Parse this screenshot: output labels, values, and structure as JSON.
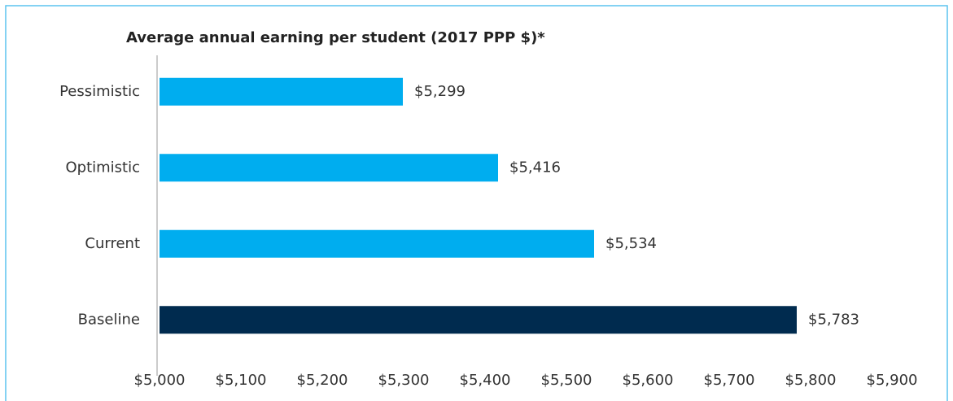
{
  "chart_data": {
    "type": "bar",
    "orientation": "horizontal",
    "title": "Average annual earning per student  (2017 PPP $)*",
    "categories": [
      "Pessimistic",
      "Optimistic",
      "Current",
      "Baseline"
    ],
    "values": [
      5299,
      5416,
      5534,
      5783
    ],
    "value_labels": [
      "$5,299",
      "$5,416",
      "$5,534",
      "$5,783"
    ],
    "colors": [
      "#00adef",
      "#00adef",
      "#00adef",
      "#002b4f"
    ],
    "xlim": [
      5000,
      5900
    ],
    "xticks": [
      {
        "value": 5000,
        "label": "$5,000"
      },
      {
        "value": 5100,
        "label": "$5,100"
      },
      {
        "value": 5200,
        "label": "$5,200"
      },
      {
        "value": 5300,
        "label": "$5,300"
      },
      {
        "value": 5400,
        "label": "$5,400"
      },
      {
        "value": 5500,
        "label": "$5,500"
      },
      {
        "value": 5600,
        "label": "$5,600"
      },
      {
        "value": 5700,
        "label": "$5,700"
      },
      {
        "value": 5800,
        "label": "$5,800"
      },
      {
        "value": 5900,
        "label": "$5,900"
      }
    ],
    "grid": false
  }
}
